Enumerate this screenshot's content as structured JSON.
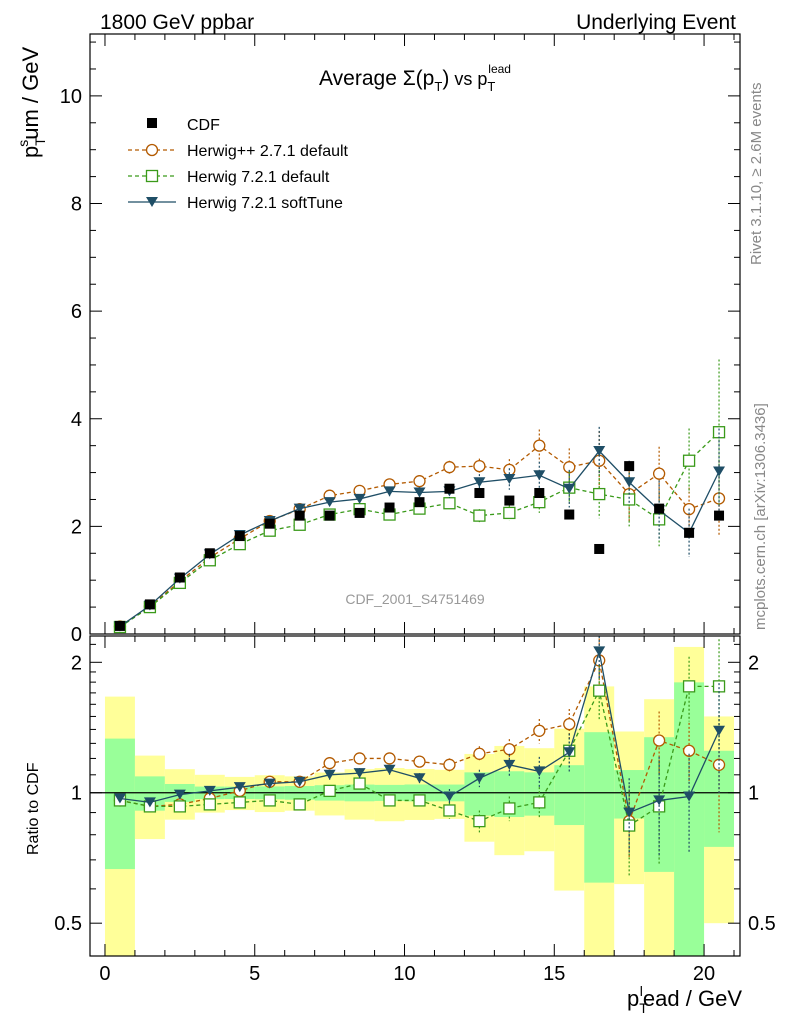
{
  "header": {
    "left": "1800 GeV ppbar",
    "right": "Underlying Event"
  },
  "side_labels": {
    "rivet": "Rivet 3.1.10, ≥ 2.6M events",
    "mcplots": "mcplots.cern.ch [arXiv:1306.3436]"
  },
  "chart_data": {
    "type": "scatter",
    "title": {
      "prefix": "Average ",
      "sigma": "Σ(p",
      "sigma_sub": "T",
      "sigma_close": ")",
      "vs": " vs p",
      "vs_sub": "T",
      "vs_sup": "lead"
    },
    "watermark": "CDF_2001_S4751469",
    "xlabel": {
      "base": "p",
      "sub": "T",
      "sup": "l",
      "rest": "ead / GeV"
    },
    "ylabel": {
      "base": "p",
      "sub": "T",
      "sup": "s",
      "rest": "um / GeV"
    },
    "ratio_ylabel": "Ratio to CDF",
    "xlim": [
      -0.5,
      21.2
    ],
    "ylim": [
      0,
      11.15
    ],
    "ratio_ylim": [
      0.42,
      2.3
    ],
    "x_ticks": [
      0,
      5,
      10,
      15,
      20
    ],
    "x_tick_labels": [
      "0",
      "5",
      "10",
      "15",
      "20"
    ],
    "y_ticks": [
      0,
      2,
      4,
      6,
      8,
      10
    ],
    "y_tick_labels": [
      "0",
      "2",
      "4",
      "6",
      "8",
      "10"
    ],
    "ratio_ticks": [
      0.5,
      1,
      2
    ],
    "ratio_tick_labels": [
      "0.5",
      "1",
      "2"
    ],
    "legend": {
      "placement": "top-left",
      "entries": [
        "CDF",
        "Herwig++ 2.7.1 default",
        "Herwig 7.2.1 default",
        "Herwig 7.2.1 softTune"
      ]
    },
    "x": [
      0.5,
      1.5,
      2.5,
      3.5,
      4.5,
      5.5,
      6.5,
      7.5,
      8.5,
      9.5,
      10.5,
      11.5,
      12.5,
      13.5,
      14.5,
      15.5,
      16.5,
      17.5,
      18.5,
      19.5,
      20.5
    ],
    "series": [
      {
        "name": "CDF",
        "color": "#000000",
        "values": [
          0.15,
          0.55,
          1.05,
          1.5,
          1.82,
          2.05,
          2.2,
          2.2,
          2.25,
          2.35,
          2.45,
          2.7,
          2.62,
          2.48,
          2.62,
          2.22,
          1.58,
          3.12,
          2.33,
          1.88,
          2.2
        ],
        "band_inner": [
          0.05,
          0.05,
          0.05,
          0.05,
          0.06,
          0.07,
          0.08,
          0.09,
          0.1,
          0.1,
          0.11,
          0.12,
          0.3,
          0.3,
          0.3,
          0.35,
          0.6,
          0.4,
          0.8,
          1.5,
          0.55
        ],
        "band_outer": [
          0.1,
          0.12,
          0.14,
          0.15,
          0.16,
          0.2,
          0.2,
          0.25,
          0.3,
          0.33,
          0.33,
          0.35,
          0.6,
          0.7,
          0.7,
          0.9,
          1.2,
          1.2,
          1.5,
          2.2,
          1.1
        ]
      },
      {
        "name": "Herwig++ 2.7.1 default",
        "color": "#b35a00",
        "values": [
          0.14,
          0.51,
          0.98,
          1.42,
          1.77,
          2.1,
          2.32,
          2.57,
          2.66,
          2.78,
          2.84,
          3.1,
          3.12,
          3.05,
          3.5,
          3.1,
          3.22,
          2.6,
          2.98,
          2.32,
          2.52
        ],
        "errors": [
          0.03,
          0.03,
          0.04,
          0.04,
          0.05,
          0.05,
          0.06,
          0.07,
          0.08,
          0.08,
          0.1,
          0.12,
          0.14,
          0.2,
          0.3,
          0.35,
          0.55,
          0.5,
          0.5,
          0.4,
          0.7
        ],
        "ratio": [
          0.96,
          0.93,
          0.94,
          0.97,
          1.01,
          1.06,
          1.06,
          1.17,
          1.2,
          1.2,
          1.18,
          1.16,
          1.23,
          1.26,
          1.39,
          1.44,
          2.02,
          0.86,
          1.32,
          1.25,
          1.16
        ],
        "ratio_errors": [
          0.02,
          0.02,
          0.02,
          0.02,
          0.02,
          0.02,
          0.02,
          0.03,
          0.03,
          0.03,
          0.03,
          0.04,
          0.05,
          0.07,
          0.09,
          0.12,
          0.3,
          0.15,
          0.22,
          0.2,
          0.35
        ]
      },
      {
        "name": "Herwig 7.2.1 default",
        "color": "#3a9a1a",
        "values": [
          0.13,
          0.5,
          0.95,
          1.37,
          1.67,
          1.92,
          2.03,
          2.22,
          2.32,
          2.22,
          2.33,
          2.43,
          2.2,
          2.25,
          2.45,
          2.72,
          2.6,
          2.5,
          2.13,
          3.22,
          3.75
        ],
        "errors": [
          0.03,
          0.03,
          0.04,
          0.04,
          0.05,
          0.05,
          0.05,
          0.06,
          0.07,
          0.08,
          0.09,
          0.1,
          0.12,
          0.15,
          0.2,
          0.3,
          0.45,
          0.5,
          0.5,
          0.6,
          1.35
        ],
        "ratio": [
          0.96,
          0.93,
          0.93,
          0.94,
          0.95,
          0.96,
          0.94,
          1.01,
          1.05,
          0.96,
          0.96,
          0.91,
          0.86,
          0.92,
          0.95,
          1.25,
          1.72,
          0.84,
          0.93,
          1.76,
          1.76
        ],
        "ratio_errors": [
          0.02,
          0.02,
          0.02,
          0.02,
          0.02,
          0.02,
          0.02,
          0.03,
          0.03,
          0.03,
          0.03,
          0.04,
          0.05,
          0.06,
          0.08,
          0.12,
          0.25,
          0.2,
          0.25,
          0.3,
          0.5
        ]
      },
      {
        "name": "Herwig 7.2.1 softTune",
        "color": "#1f4e66",
        "values": [
          0.14,
          0.53,
          1.03,
          1.48,
          1.84,
          2.1,
          2.33,
          2.45,
          2.51,
          2.65,
          2.63,
          2.65,
          2.82,
          2.88,
          2.95,
          2.7,
          3.4,
          2.82,
          2.3,
          1.88,
          3.02
        ],
        "errors": [
          0.03,
          0.03,
          0.04,
          0.04,
          0.05,
          0.05,
          0.06,
          0.07,
          0.08,
          0.09,
          0.1,
          0.12,
          0.15,
          0.2,
          0.25,
          0.35,
          0.45,
          0.4,
          0.55,
          0.45,
          0.8
        ],
        "ratio": [
          0.97,
          0.95,
          0.99,
          1.01,
          1.03,
          1.05,
          1.06,
          1.1,
          1.11,
          1.13,
          1.08,
          0.98,
          1.08,
          1.16,
          1.12,
          1.24,
          2.12,
          0.9,
          0.96,
          0.98,
          1.39
        ],
        "ratio_errors": [
          0.02,
          0.02,
          0.02,
          0.02,
          0.02,
          0.02,
          0.02,
          0.03,
          0.03,
          0.03,
          0.03,
          0.04,
          0.05,
          0.07,
          0.09,
          0.13,
          0.28,
          0.18,
          0.25,
          0.25,
          0.4
        ]
      }
    ]
  }
}
